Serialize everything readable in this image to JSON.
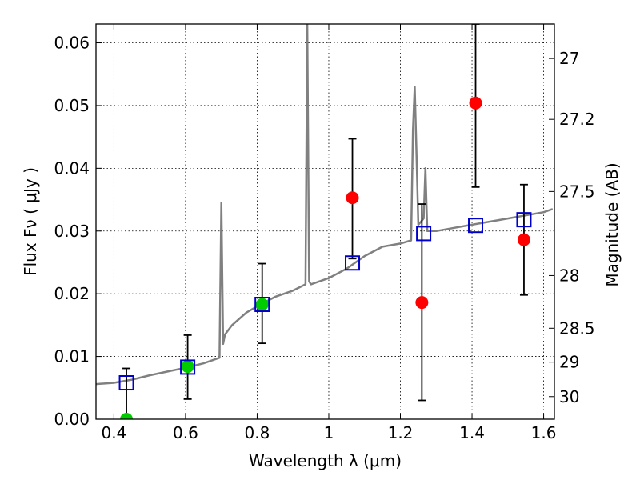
{
  "chart_data": {
    "type": "scatter",
    "xlabel": "Wavelength  λ (μm)",
    "ylabel": "Flux  Fν  ( μJy )",
    "ylabel_right": "Magnitude (AB)",
    "xlim": [
      0.35,
      1.63
    ],
    "ylim": [
      0.0,
      0.063
    ],
    "x_ticks": [
      0.4,
      0.6,
      0.8,
      1.0,
      1.2,
      1.4,
      1.6
    ],
    "x_tick_labels": [
      "0.4",
      "0.6",
      "0.8",
      "1",
      "1.2",
      "1.4",
      "1.6"
    ],
    "y_ticks": [
      0.0,
      0.01,
      0.02,
      0.03,
      0.04,
      0.05,
      0.06
    ],
    "y_tick_labels": [
      "0.00",
      "0.01",
      "0.02",
      "0.03",
      "0.04",
      "0.05",
      "0.06"
    ],
    "right_ticks": [
      {
        "label": "27",
        "flux": 0.0575
      },
      {
        "label": "27.2",
        "flux": 0.0478
      },
      {
        "label": "27.5",
        "flux": 0.0363
      },
      {
        "label": "28",
        "flux": 0.0229
      },
      {
        "label": "28.5",
        "flux": 0.0145
      },
      {
        "label": "29",
        "flux": 0.0091
      },
      {
        "label": "30",
        "flux": 0.0036
      }
    ],
    "grid": true,
    "series": [
      {
        "marker": "circle",
        "color": "#00cc00",
        "points": [
          {
            "x": 0.435,
            "y": 0.0,
            "err_low": 0.0,
            "err_high": 0.0081
          },
          {
            "x": 0.606,
            "y": 0.0084,
            "err_low": 0.0032,
            "err_high": 0.0134
          },
          {
            "x": 0.814,
            "y": 0.0183,
            "err_low": 0.0121,
            "err_high": 0.0248
          }
        ]
      },
      {
        "marker": "circle",
        "color": "#ff0000",
        "points": [
          {
            "x": 1.066,
            "y": 0.0353,
            "err_low": 0.0256,
            "err_high": 0.0447
          },
          {
            "x": 1.26,
            "y": 0.0186,
            "err_low": 0.003,
            "err_high": 0.0343
          },
          {
            "x": 1.41,
            "y": 0.0504,
            "err_low": 0.037,
            "err_high": 0.063
          },
          {
            "x": 1.545,
            "y": 0.0286,
            "err_low": 0.0198,
            "err_high": 0.0374
          }
        ]
      },
      {
        "marker": "open-square",
        "color": "#0000cc",
        "points": [
          {
            "x": 0.435,
            "y": 0.0058
          },
          {
            "x": 0.606,
            "y": 0.0083
          },
          {
            "x": 0.814,
            "y": 0.0183
          },
          {
            "x": 1.066,
            "y": 0.0249
          },
          {
            "x": 1.265,
            "y": 0.0296
          },
          {
            "x": 1.41,
            "y": 0.0309
          },
          {
            "x": 1.545,
            "y": 0.0318
          }
        ]
      }
    ],
    "model_spectrum": {
      "color": "#808080",
      "x": [
        0.35,
        0.4,
        0.45,
        0.5,
        0.55,
        0.6,
        0.65,
        0.695,
        0.7,
        0.705,
        0.71,
        0.73,
        0.75,
        0.77,
        0.8,
        0.85,
        0.9,
        0.935,
        0.94,
        0.945,
        0.95,
        1.0,
        1.05,
        1.1,
        1.15,
        1.2,
        1.23,
        1.235,
        1.24,
        1.245,
        1.25,
        1.265,
        1.27,
        1.275,
        1.3,
        1.35,
        1.4,
        1.45,
        1.5,
        1.55,
        1.6,
        1.625
      ],
      "y": [
        0.0056,
        0.0058,
        0.0063,
        0.007,
        0.0076,
        0.0082,
        0.0089,
        0.0098,
        0.0345,
        0.012,
        0.0135,
        0.015,
        0.016,
        0.017,
        0.018,
        0.0195,
        0.0205,
        0.0215,
        0.063,
        0.022,
        0.0215,
        0.0225,
        0.024,
        0.026,
        0.0275,
        0.028,
        0.0285,
        0.046,
        0.053,
        0.042,
        0.031,
        0.032,
        0.04,
        0.03,
        0.03,
        0.0305,
        0.031,
        0.0315,
        0.032,
        0.0325,
        0.033,
        0.0335
      ]
    }
  }
}
